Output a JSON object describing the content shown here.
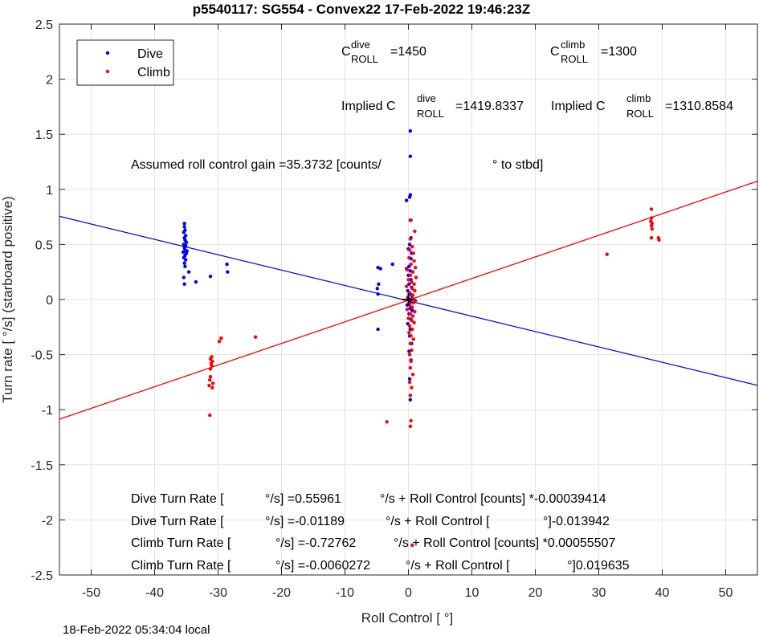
{
  "chart_data": {
    "type": "scatter",
    "title": "p5540117: SG554 - Convex22 17-Feb-2022 19:46:23Z",
    "xlabel": "Roll Control [   °]",
    "ylabel": "Turn rate [   °/s] (starboard positive)",
    "xlim": [
      -55,
      55
    ],
    "ylim": [
      -2.5,
      2.5
    ],
    "xticks": [
      -50,
      -40,
      -30,
      -20,
      -10,
      0,
      10,
      20,
      30,
      40,
      50
    ],
    "yticks": [
      -2.5,
      -2,
      -1.5,
      -1,
      -0.5,
      0,
      0.5,
      1,
      1.5,
      2,
      2.5
    ],
    "xtick_labels": [
      "-50",
      "-40",
      "-30",
      "-20",
      "-10",
      "0",
      "10",
      "20",
      "30",
      "40",
      "50"
    ],
    "ytick_labels": [
      "-2.5",
      "-2",
      "-1.5",
      "-1",
      "-0.5",
      "0",
      "0.5",
      "1",
      "1.5",
      "2",
      "2.5"
    ],
    "grid": true,
    "legend_position": "top-left",
    "series": [
      {
        "name": "Dive",
        "color": "#0000ff",
        "points": [
          [
            -35.3,
            0.69
          ],
          [
            -35.3,
            0.66
          ],
          [
            -35.2,
            0.63
          ],
          [
            -35.4,
            0.61
          ],
          [
            -35.1,
            0.58
          ],
          [
            -35.3,
            0.56
          ],
          [
            -35.2,
            0.54
          ],
          [
            -35.0,
            0.52
          ],
          [
            -35.4,
            0.5
          ],
          [
            -35.1,
            0.49
          ],
          [
            -35.3,
            0.47
          ],
          [
            -35.2,
            0.45
          ],
          [
            -35.5,
            0.43
          ],
          [
            -35.0,
            0.42
          ],
          [
            -34.9,
            0.44
          ],
          [
            -35.2,
            0.4
          ],
          [
            -35.4,
            0.38
          ],
          [
            -35.1,
            0.36
          ],
          [
            -35.3,
            0.33
          ],
          [
            -35.2,
            0.3
          ],
          [
            -35.4,
            0.2
          ],
          [
            -35.3,
            0.14
          ],
          [
            -34.6,
            0.25
          ],
          [
            -33.5,
            0.16
          ],
          [
            -31.2,
            0.21
          ],
          [
            -28.6,
            0.32
          ],
          [
            -28.5,
            0.25
          ],
          [
            -4.8,
            0.29
          ],
          [
            -4.4,
            0.28
          ],
          [
            -2.5,
            0.32
          ],
          [
            -4.9,
            0.1
          ],
          [
            -4.7,
            0.14
          ],
          [
            -4.8,
            0.05
          ],
          [
            -4.8,
            -0.27
          ],
          [
            -0.3,
            0.9
          ],
          [
            0.3,
            1.53
          ],
          [
            0.3,
            1.3
          ],
          [
            0.3,
            0.95
          ],
          [
            0.2,
            0.93
          ],
          [
            0.3,
            0.72
          ],
          [
            0.4,
            0.56
          ],
          [
            0.2,
            0.5
          ],
          [
            0.0,
            0.46
          ],
          [
            0.5,
            0.42
          ],
          [
            0.4,
            0.37
          ],
          [
            0.1,
            0.3
          ],
          [
            -0.3,
            0.28
          ],
          [
            0.3,
            0.26
          ],
          [
            0.0,
            0.22
          ],
          [
            0.4,
            0.18
          ],
          [
            0.1,
            0.14
          ],
          [
            0.5,
            0.11
          ],
          [
            -0.1,
            0.08
          ],
          [
            0.3,
            0.05
          ],
          [
            0.6,
            0.03
          ],
          [
            0.0,
            0.01
          ],
          [
            0.4,
            -0.02
          ],
          [
            -0.2,
            -0.05
          ],
          [
            0.3,
            -0.08
          ],
          [
            0.6,
            -0.1
          ],
          [
            0.1,
            -0.13
          ],
          [
            0.4,
            -0.18
          ],
          [
            -0.1,
            -0.22
          ],
          [
            0.3,
            -0.27
          ],
          [
            0.2,
            -0.33
          ],
          [
            0.5,
            -0.4
          ],
          [
            0.1,
            -0.47
          ],
          [
            0.4,
            -0.55
          ],
          [
            0.2,
            -0.72
          ],
          [
            0.3,
            -0.91
          ]
        ]
      },
      {
        "name": "Climb",
        "color": "#ff0000",
        "points": [
          [
            38.3,
            0.82
          ],
          [
            38.3,
            0.74
          ],
          [
            38.2,
            0.71
          ],
          [
            38.4,
            0.69
          ],
          [
            38.3,
            0.67
          ],
          [
            38.4,
            0.64
          ],
          [
            38.3,
            0.56
          ],
          [
            39.4,
            0.56
          ],
          [
            39.5,
            0.54
          ],
          [
            31.3,
            0.41
          ],
          [
            -24.1,
            -0.34
          ],
          [
            -29.5,
            -0.35
          ],
          [
            -29.8,
            -0.38
          ],
          [
            -31.0,
            -0.52
          ],
          [
            -31.2,
            -0.54
          ],
          [
            -30.9,
            -0.56
          ],
          [
            -31.1,
            -0.58
          ],
          [
            -31.0,
            -0.6
          ],
          [
            -31.2,
            -0.63
          ],
          [
            -31.2,
            -0.7
          ],
          [
            -31.3,
            -0.73
          ],
          [
            -30.8,
            -0.76
          ],
          [
            -31.4,
            -0.78
          ],
          [
            -30.9,
            -0.8
          ],
          [
            -31.3,
            -1.05
          ],
          [
            -3.4,
            -1.11
          ],
          [
            0.4,
            0.72
          ],
          [
            1.0,
            0.62
          ],
          [
            0.3,
            0.55
          ],
          [
            0.6,
            0.48
          ],
          [
            0.2,
            0.45
          ],
          [
            0.8,
            0.42
          ],
          [
            0.1,
            0.38
          ],
          [
            0.9,
            0.35
          ],
          [
            0.4,
            0.32
          ],
          [
            1.1,
            0.29
          ],
          [
            -0.2,
            0.27
          ],
          [
            0.7,
            0.25
          ],
          [
            0.3,
            0.22
          ],
          [
            1.2,
            0.2
          ],
          [
            0.0,
            0.18
          ],
          [
            0.5,
            0.16
          ],
          [
            0.9,
            0.14
          ],
          [
            -0.3,
            0.12
          ],
          [
            0.6,
            0.1
          ],
          [
            1.0,
            0.08
          ],
          [
            0.2,
            0.06
          ],
          [
            0.7,
            0.04
          ],
          [
            -0.1,
            0.02
          ],
          [
            0.4,
            0.0
          ],
          [
            1.1,
            -0.01
          ],
          [
            0.8,
            -0.03
          ],
          [
            0.2,
            -0.05
          ],
          [
            0.6,
            -0.07
          ],
          [
            -0.2,
            -0.09
          ],
          [
            1.0,
            -0.11
          ],
          [
            0.3,
            -0.13
          ],
          [
            0.7,
            -0.15
          ],
          [
            0.0,
            -0.17
          ],
          [
            0.5,
            -0.19
          ],
          [
            0.9,
            -0.21
          ],
          [
            0.2,
            -0.24
          ],
          [
            0.6,
            -0.27
          ],
          [
            0.1,
            -0.3
          ],
          [
            0.4,
            -0.33
          ],
          [
            0.8,
            -0.36
          ],
          [
            0.3,
            -0.4
          ],
          [
            0.5,
            -0.46
          ],
          [
            0.2,
            -0.5
          ],
          [
            0.4,
            -0.56
          ],
          [
            0.3,
            -0.62
          ],
          [
            0.7,
            -0.68
          ],
          [
            0.2,
            -0.75
          ],
          [
            0.5,
            -0.8
          ],
          [
            0.3,
            -0.87
          ],
          [
            0.4,
            -1.1
          ],
          [
            0.3,
            -1.15
          ],
          [
            0.6,
            -2.23
          ]
        ]
      }
    ],
    "fit_lines": [
      {
        "series": "Dive",
        "color": "#0000ff",
        "intercept": -0.01189,
        "slope": -0.013942
      },
      {
        "series": "Climb",
        "color": "#ff0000",
        "intercept": -0.0060272,
        "slope": 0.019635
      }
    ],
    "center_marker": {
      "x": 0,
      "y": 0,
      "color": "#000000"
    },
    "annotations": {
      "c_roll_dive_prefix": "C",
      "c_roll_dive_sup": "dive",
      "c_roll_dive_sub": "ROLL",
      "c_roll_dive_value": "=1450",
      "c_roll_climb_prefix": "C",
      "c_roll_climb_sup": "climb",
      "c_roll_climb_sub": "ROLL",
      "c_roll_climb_value": "=1300",
      "implied_dive_prefix": "Implied C",
      "implied_dive_sup": "dive",
      "implied_dive_sub": "ROLL",
      "implied_dive_value": "=1419.8337",
      "implied_climb_prefix": "Implied C",
      "implied_climb_sup": "climb",
      "implied_climb_sub": "ROLL",
      "implied_climb_value": "=1310.8584",
      "gain_text": "Assumed roll control gain =35.3732 [counts/",
      "gain_unit": "° to stbd]",
      "fit1_a": "Dive Turn Rate [",
      "fit1_b": "°/s] =0.55961",
      "fit1_c": "°/s + Roll Control [counts] *-0.00039414",
      "fit2_a": "Dive Turn Rate [",
      "fit2_b": "°/s] =-0.01189",
      "fit2_c": "°/s + Roll Control [",
      "fit2_d": "°]-0.013942",
      "fit3_a": "Climb Turn Rate [",
      "fit3_b": "°/s] =-0.72762",
      "fit3_c": "°/s + Roll Control [counts] *0.00055507",
      "fit4_a": "Climb Turn Rate [",
      "fit4_b": "°/s] =-0.0060272",
      "fit4_c": "°/s + Roll Control [",
      "fit4_d": "°]0.019635"
    }
  },
  "footer": {
    "timestamp": "18-Feb-2022 05:34:04 local"
  }
}
